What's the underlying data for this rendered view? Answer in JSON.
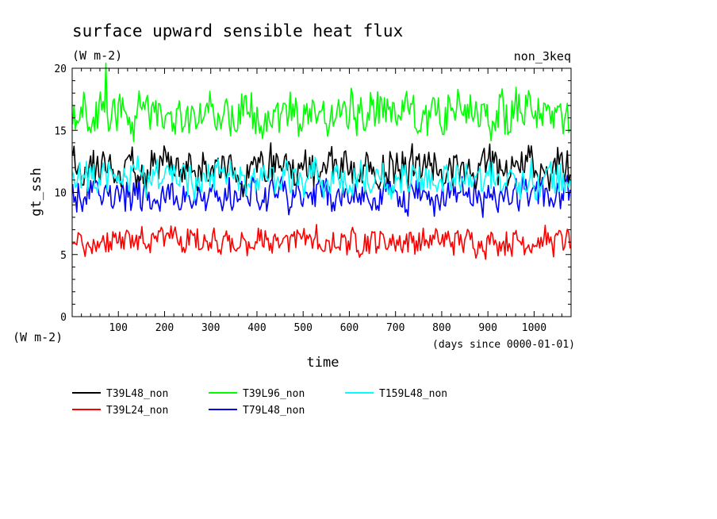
{
  "chart_data": {
    "type": "line",
    "title": "surface upward sensible heat flux",
    "units": "(W m-2)",
    "units_left": "(W m-2)",
    "experiment": "non_3keq",
    "ylabel": "gt_ssh",
    "xlabel": "time",
    "xlabel_note": "(days since 0000-01-01)",
    "xlim": [
      0,
      1080
    ],
    "ylim": [
      0,
      20
    ],
    "x_ticks": [
      100,
      200,
      300,
      400,
      500,
      600,
      700,
      800,
      900,
      1000
    ],
    "y_ticks": [
      0,
      5,
      10,
      15,
      20
    ],
    "grid": false,
    "legend_position": "bottom",
    "series": [
      {
        "name": "T39L48_non",
        "color": "#000000",
        "mean": 12.0,
        "amplitude": 0.9,
        "seed": 11
      },
      {
        "name": "T39L96_non",
        "color": "#00ff00",
        "mean": 16.3,
        "amplitude": 1.0,
        "seed": 23,
        "spike": {
          "x": 72,
          "y": 20.4
        }
      },
      {
        "name": "T159L48_non",
        "color": "#00ffff",
        "mean": 11.1,
        "amplitude": 0.8,
        "seed": 37
      },
      {
        "name": "T39L24_non",
        "color": "#ff0000",
        "mean": 6.1,
        "amplitude": 0.6,
        "seed": 41
      },
      {
        "name": "T79L48_non",
        "color": "#0000ff",
        "mean": 9.8,
        "amplitude": 0.8,
        "seed": 53
      }
    ]
  }
}
